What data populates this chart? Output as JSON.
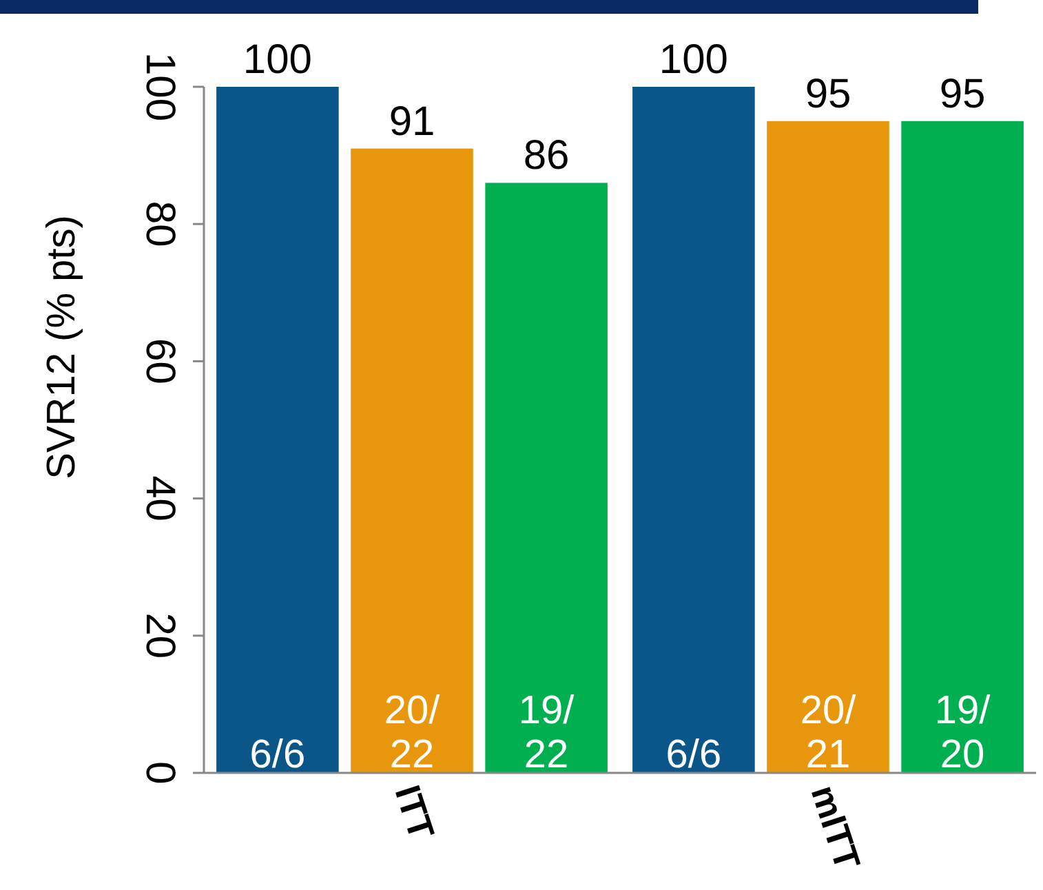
{
  "chart_data": {
    "type": "bar",
    "ylabel": "SVR12 (% pts)",
    "categories": [
      "ITT",
      "mITT"
    ],
    "series": [
      {
        "color": "#0b5689",
        "values": [
          100,
          100
        ]
      },
      {
        "color": "#e8960b",
        "values": [
          91,
          95
        ]
      },
      {
        "color": "#00b050",
        "values": [
          86,
          95
        ]
      }
    ],
    "annotations": [
      {
        "text": "6/6",
        "x": "ITT",
        "y": 0
      },
      {
        "text": "20/\n22",
        "x": "ITT",
        "y": 0
      },
      {
        "text": "19/\n22",
        "x": "ITT",
        "y": 0
      },
      {
        "text": "6/6",
        "x": "mITT",
        "y": 0
      },
      {
        "text": "20/\n21",
        "x": "mITT",
        "y": 0
      },
      {
        "text": "19/\n20",
        "x": "mITT",
        "y": 0
      }
    ],
    "ylim": [
      0,
      100
    ],
    "yticks": [
      0,
      20,
      40,
      60,
      80,
      100
    ],
    "data_labels": true,
    "grid": false
  }
}
